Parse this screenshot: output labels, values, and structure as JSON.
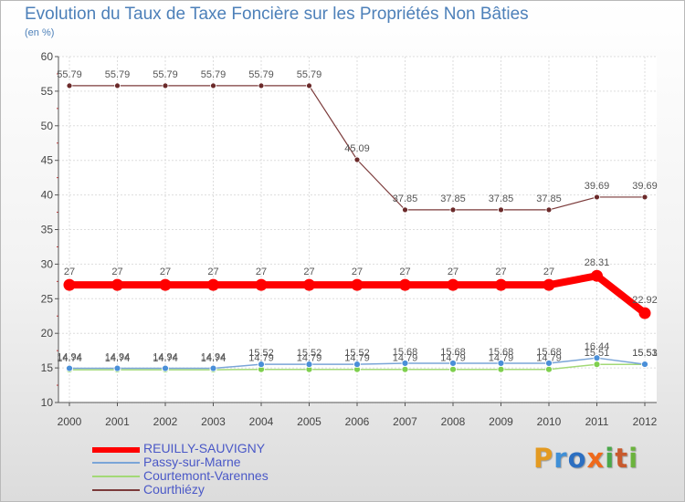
{
  "chart_data": {
    "type": "line",
    "title": "Evolution du Taux de Taxe Foncière sur les Propriétés Non Bâties",
    "subtitle": "(en %)",
    "xlabel": "",
    "ylabel": "",
    "ylim": [
      10,
      60
    ],
    "yticks": [
      10,
      15,
      20,
      25,
      30,
      35,
      40,
      45,
      50,
      55,
      60
    ],
    "grid": true,
    "legend_position": "bottom-left",
    "categories": [
      "2000",
      "2001",
      "2002",
      "2003",
      "2004",
      "2005",
      "2006",
      "2007",
      "2008",
      "2009",
      "2010",
      "2011",
      "2012"
    ],
    "series": [
      {
        "name": "REUILLY-SAUVIGNY",
        "color": "#ff0000",
        "values": [
          27,
          27,
          27,
          27,
          27,
          27,
          27,
          27,
          27,
          27,
          27,
          28.31,
          22.92
        ],
        "labels": [
          "27",
          "27",
          "27",
          "27",
          "27",
          "27",
          "27",
          "27",
          "27",
          "27",
          "27",
          "28.31",
          "22.92"
        ]
      },
      {
        "name": "Passy-sur-Marne",
        "color": "#7aa5d8",
        "values": [
          14.94,
          14.94,
          14.94,
          14.94,
          15.52,
          15.52,
          15.52,
          15.68,
          15.68,
          15.68,
          15.68,
          16.44,
          15.53
        ],
        "labels": [
          "14.94",
          "14.94",
          "14.94",
          "14.94",
          "15.52",
          "15.52",
          "15.52",
          "15.68",
          "15.68",
          "15.68",
          "15.68",
          "16.44",
          "15.53"
        ]
      },
      {
        "name": "Courtemont-Varennes",
        "color": "#a3d977",
        "values": [
          14.74,
          14.74,
          14.74,
          14.74,
          14.79,
          14.79,
          14.79,
          14.79,
          14.79,
          14.79,
          14.79,
          15.51,
          15.51
        ],
        "labels": [
          "14.74",
          "14.74",
          "14.74",
          "14.74",
          "14.79",
          "14.79",
          "14.79",
          "14.79",
          "14.79",
          "14.79",
          "14.79",
          "15.51",
          "15.51"
        ]
      },
      {
        "name": "Courthiézy",
        "color": "#7b3a3a",
        "values": [
          55.79,
          55.79,
          55.79,
          55.79,
          55.79,
          55.79,
          45.09,
          37.85,
          37.85,
          37.85,
          37.85,
          39.69,
          39.69
        ],
        "labels": [
          "55.79",
          "55.79",
          "55.79",
          "55.79",
          "55.79",
          "55.79",
          "45.09",
          "37.85",
          "37.85",
          "37.85",
          "37.85",
          "39.69",
          "39.69"
        ]
      }
    ]
  },
  "brand": {
    "letters": [
      "P",
      "r",
      "o",
      "x",
      "i",
      "t",
      "i"
    ]
  }
}
